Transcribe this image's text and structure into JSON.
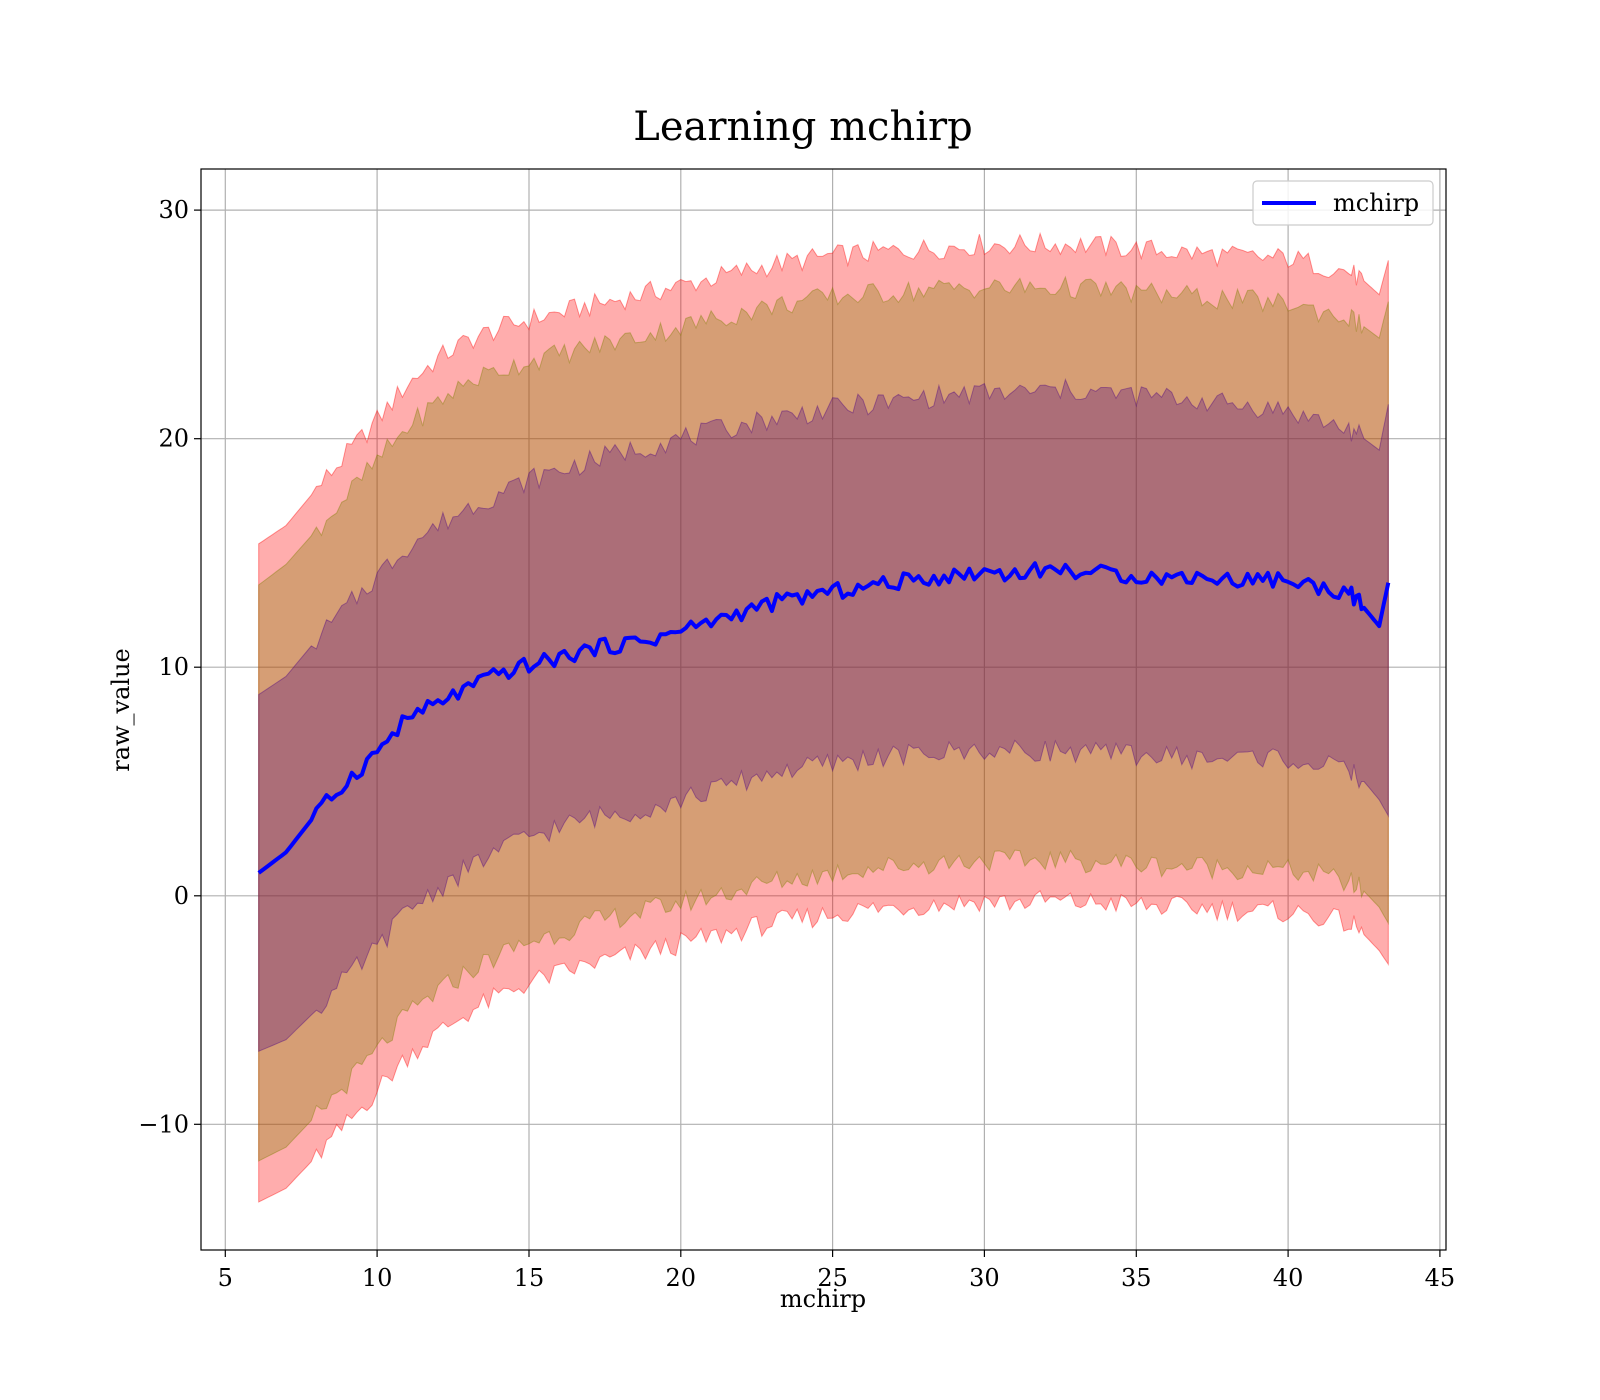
{
  "chart_data": {
    "type": "area",
    "title": "Learning mchirp",
    "xlabel": "mchirp",
    "ylabel": "raw_value",
    "xlim": [
      4.2,
      45.2
    ],
    "ylim": [
      -15.5,
      31.8
    ],
    "xticks": [
      5,
      10,
      15,
      20,
      25,
      30,
      35,
      40,
      45
    ],
    "xtick_labels": [
      "5",
      "10",
      "15",
      "20",
      "25",
      "30",
      "35",
      "40",
      "45"
    ],
    "yticks": [
      -10,
      0,
      10,
      20,
      30
    ],
    "ytick_labels": [
      "−10",
      "0",
      "10",
      "20",
      "30"
    ],
    "grid": true,
    "legend": {
      "position": "top-right",
      "entries": [
        "mchirp"
      ]
    },
    "colors": {
      "line": "#0000ff",
      "band": "#ff0000",
      "band_dark": "#4b0082",
      "band_mid": "#808000"
    },
    "x": [
      6.1,
      7,
      8,
      9,
      10,
      11,
      12,
      13,
      14,
      15,
      16,
      17,
      18,
      19,
      20,
      21,
      22,
      23,
      24,
      25,
      26,
      27,
      28,
      29,
      30,
      31,
      32,
      33,
      34,
      35,
      36,
      37,
      38,
      39,
      40,
      41,
      42,
      42.5,
      43,
      43.3
    ],
    "series": [
      {
        "name": "mchirp",
        "role": "mean",
        "values": [
          1.0,
          1.9,
          3.6,
          5.0,
          6.3,
          7.8,
          8.4,
          9.1,
          9.7,
          10.1,
          10.4,
          10.8,
          11.0,
          11.2,
          11.6,
          12.0,
          12.4,
          12.8,
          13.1,
          13.3,
          13.5,
          13.7,
          13.9,
          14.0,
          14.2,
          14.1,
          14.3,
          14.2,
          14.1,
          14.0,
          13.9,
          14.0,
          13.8,
          13.9,
          13.8,
          13.5,
          13.3,
          12.6,
          11.8,
          13.7
        ]
      },
      {
        "name": "",
        "role": "band-1sigma-upper",
        "values": [
          8.8,
          9.6,
          11.2,
          12.6,
          14.0,
          15.3,
          16.2,
          17.0,
          17.6,
          18.2,
          18.6,
          19.0,
          19.4,
          19.7,
          20.0,
          20.3,
          20.6,
          20.9,
          21.1,
          21.3,
          21.5,
          21.6,
          21.8,
          21.9,
          22.0,
          22.0,
          22.1,
          22.1,
          22.0,
          21.9,
          21.8,
          21.7,
          21.5,
          21.4,
          21.2,
          20.8,
          20.4,
          20.0,
          19.5,
          21.5
        ]
      },
      {
        "name": "",
        "role": "band-1sigma-lower",
        "values": [
          -6.8,
          -6.3,
          -5.0,
          -3.6,
          -2.3,
          -0.6,
          0.3,
          1.2,
          2.0,
          2.6,
          3.0,
          3.4,
          3.6,
          3.9,
          4.2,
          4.6,
          5.0,
          5.4,
          5.6,
          5.8,
          6.0,
          6.1,
          6.2,
          6.3,
          6.4,
          6.3,
          6.4,
          6.3,
          6.2,
          6.2,
          6.1,
          6.0,
          6.0,
          6.1,
          6.0,
          5.7,
          5.5,
          5.0,
          4.2,
          3.5
        ]
      },
      {
        "name": "",
        "role": "band-2sigma-upper",
        "values": [
          13.6,
          14.5,
          16.0,
          17.5,
          19.0,
          20.5,
          21.6,
          22.5,
          23.0,
          23.4,
          23.7,
          24.0,
          24.3,
          24.6,
          24.9,
          25.2,
          25.5,
          25.8,
          26.0,
          26.2,
          26.3,
          26.4,
          26.5,
          26.6,
          26.6,
          26.6,
          26.6,
          26.6,
          26.5,
          26.4,
          26.3,
          26.2,
          26.1,
          26.0,
          25.9,
          25.6,
          25.3,
          24.9,
          24.4,
          26.0
        ]
      },
      {
        "name": "",
        "role": "band-2sigma-lower",
        "values": [
          -11.6,
          -11.0,
          -9.6,
          -8.2,
          -6.8,
          -5.2,
          -4.2,
          -3.3,
          -2.6,
          -2.0,
          -1.6,
          -1.2,
          -0.9,
          -0.6,
          -0.3,
          0.0,
          0.3,
          0.6,
          0.8,
          1.0,
          1.2,
          1.3,
          1.4,
          1.5,
          1.6,
          1.5,
          1.6,
          1.5,
          1.5,
          1.4,
          1.3,
          1.3,
          1.2,
          1.2,
          1.1,
          0.9,
          0.6,
          0.2,
          -0.5,
          -1.2
        ]
      },
      {
        "name": "",
        "role": "band-3sigma-upper",
        "values": [
          15.4,
          16.2,
          17.8,
          19.3,
          20.8,
          22.4,
          23.5,
          24.3,
          24.8,
          25.2,
          25.5,
          25.8,
          26.1,
          26.4,
          26.7,
          27.0,
          27.3,
          27.6,
          27.8,
          28.0,
          28.1,
          28.2,
          28.3,
          28.4,
          28.5,
          28.5,
          28.5,
          28.5,
          28.4,
          28.3,
          28.2,
          28.1,
          28.0,
          27.9,
          27.9,
          27.6,
          27.3,
          26.9,
          26.3,
          27.8
        ]
      },
      {
        "name": "",
        "role": "band-3sigma-lower",
        "values": [
          -13.4,
          -12.8,
          -11.4,
          -10.0,
          -8.5,
          -7.0,
          -6.0,
          -5.1,
          -4.4,
          -3.8,
          -3.4,
          -3.0,
          -2.7,
          -2.4,
          -2.1,
          -1.8,
          -1.5,
          -1.2,
          -1.0,
          -0.8,
          -0.6,
          -0.5,
          -0.4,
          -0.3,
          -0.2,
          -0.3,
          -0.2,
          -0.3,
          -0.3,
          -0.4,
          -0.5,
          -0.5,
          -0.6,
          -0.7,
          -0.7,
          -0.9,
          -1.2,
          -1.7,
          -2.4,
          -3.0
        ]
      }
    ]
  }
}
